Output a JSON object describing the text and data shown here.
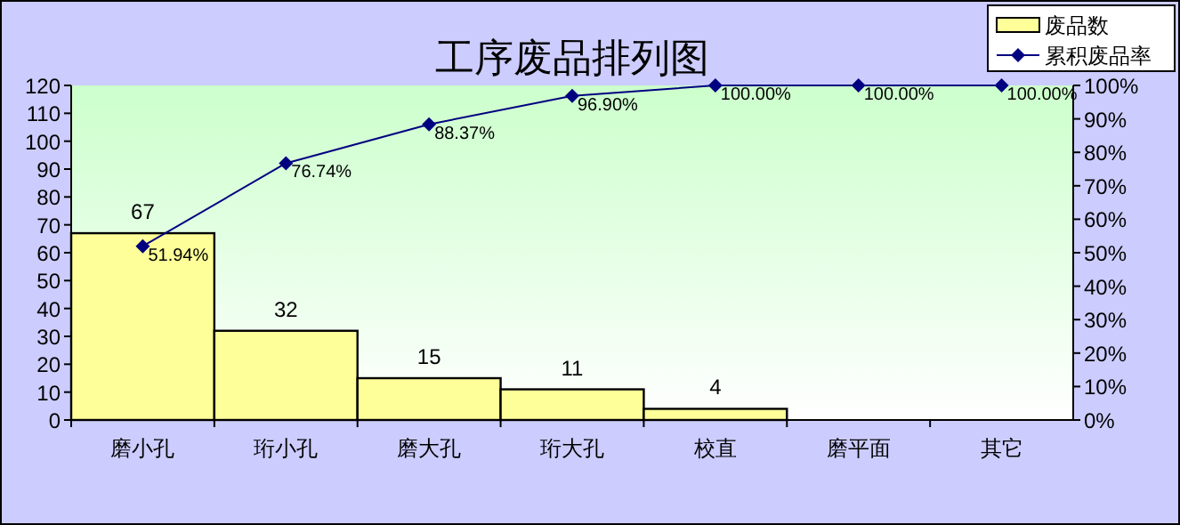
{
  "chart_data": {
    "type": "bar",
    "title": "工序废品排列图",
    "categories": [
      "磨小孔",
      "珩小孔",
      "磨大孔",
      "珩大孔",
      "校直",
      "磨平面",
      "其它"
    ],
    "ylim": [
      0,
      120
    ],
    "yticks": [
      0,
      10,
      20,
      30,
      40,
      50,
      60,
      70,
      80,
      90,
      100,
      110,
      120
    ],
    "y2lim": [
      0,
      100
    ],
    "y2ticks": [
      {
        "value": 0,
        "label": "0%"
      },
      {
        "value": 10,
        "label": "10%"
      },
      {
        "value": 20,
        "label": "20%"
      },
      {
        "value": 30,
        "label": "30%"
      },
      {
        "value": 40,
        "label": "40%"
      },
      {
        "value": 50,
        "label": "50%"
      },
      {
        "value": 60,
        "label": "60%"
      },
      {
        "value": 70,
        "label": "70%"
      },
      {
        "value": 80,
        "label": "80%"
      },
      {
        "value": 90,
        "label": "90%"
      },
      {
        "value": 100,
        "label": "100%"
      }
    ],
    "legend": "top right",
    "series": [
      {
        "name": "废品数",
        "type": "bar",
        "color": "#ffff99",
        "values": [
          67,
          32,
          15,
          11,
          4,
          0,
          0
        ],
        "value_labels": [
          "67",
          "32",
          "15",
          "11",
          "4",
          null,
          null
        ]
      },
      {
        "name": "累积废品率",
        "type": "line",
        "axis": "y2",
        "color": "#000080",
        "marker": "diamond",
        "values": [
          51.94,
          76.74,
          88.37,
          96.9,
          100,
          100,
          100
        ],
        "value_labels": [
          "51.94%",
          "76.74%",
          "88.37%",
          "96.90%",
          "100.00%",
          "100.00%",
          "100.00%"
        ]
      }
    ]
  }
}
